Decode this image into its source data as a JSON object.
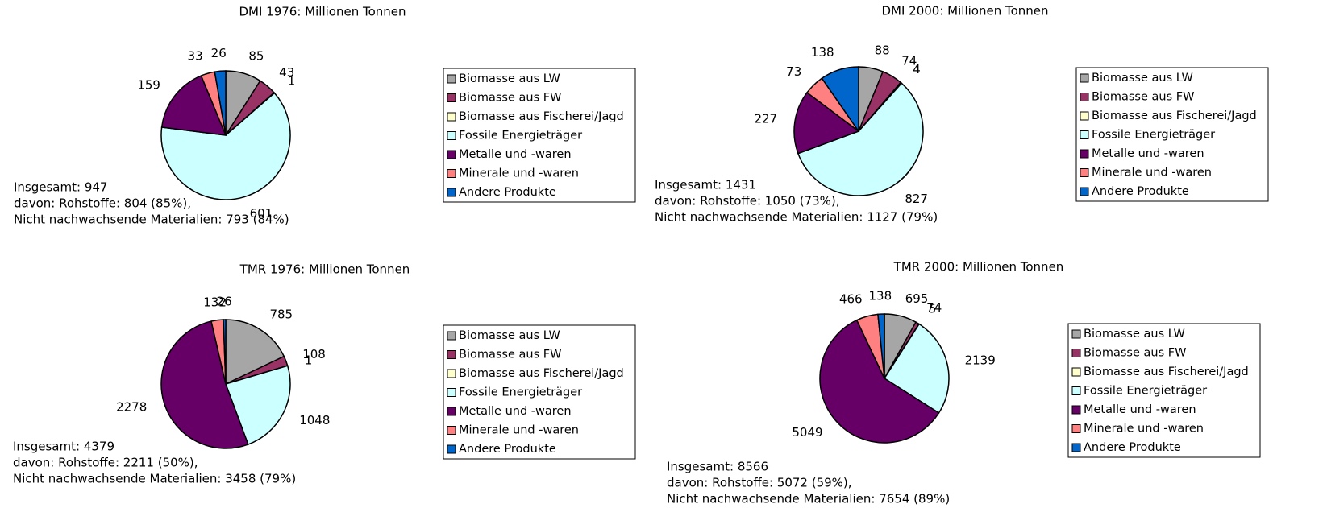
{
  "chart_data": [
    {
      "type": "pie",
      "title": "DMI 1976: Millionen Tonnen",
      "categories": [
        "Biomasse aus LW",
        "Biomasse aus FW",
        "Biomasse aus Fischerei/Jagd",
        "Fossile Energieträger",
        "Metalle und -waren",
        "Minerale und -waren",
        "Andere Produkte"
      ],
      "values": [
        85,
        43,
        1,
        601,
        159,
        33,
        26
      ],
      "colors": [
        "#a6a6a6",
        "#993366",
        "#ffffcc",
        "#ccffff",
        "#660066",
        "#ff8080",
        "#0066cc"
      ],
      "annotations": [
        "Insgesamt: 947",
        "davon: Rohstoffe: 804 (85%),",
        "Nicht nachwachsende Materialien: 793 (84%)"
      ]
    },
    {
      "type": "pie",
      "title": "DMI 2000: Millionen Tonnen",
      "categories": [
        "Biomasse aus LW",
        "Biomasse aus FW",
        "Biomasse aus Fischerei/Jagd",
        "Fossile Energieträger",
        "Metalle und -waren",
        "Minerale und -waren",
        "Andere Produkte"
      ],
      "values": [
        88,
        74,
        4,
        827,
        227,
        73,
        138
      ],
      "colors": [
        "#a6a6a6",
        "#993366",
        "#ffffcc",
        "#ccffff",
        "#660066",
        "#ff8080",
        "#0066cc"
      ],
      "annotations": [
        "Insgesamt: 1431",
        "davon: Rohstoffe: 1050 (73%),",
        "Nicht nachwachsende Materialien: 1127 (79%)"
      ]
    },
    {
      "type": "pie",
      "title": "TMR 1976: Millionen Tonnen",
      "categories": [
        "Biomasse aus LW",
        "Biomasse aus FW",
        "Biomasse aus Fischerei/Jagd",
        "Fossile Energieträger",
        "Metalle und -waren",
        "Minerale und -waren",
        "Andere Produkte"
      ],
      "values": [
        785,
        108,
        1,
        1048,
        2278,
        132,
        26
      ],
      "colors": [
        "#a6a6a6",
        "#993366",
        "#ffffcc",
        "#ccffff",
        "#660066",
        "#ff8080",
        "#0066cc"
      ],
      "annotations": [
        "Insgesamt: 4379",
        "davon: Rohstoffe: 2211 (50%),",
        "Nicht nachwachsende Materialien: 3458 (79%)"
      ]
    },
    {
      "type": "pie",
      "title": "TMR 2000: Millionen Tonnen",
      "categories": [
        "Biomasse aus LW",
        "Biomasse aus FW",
        "Biomasse aus Fischerei/Jagd",
        "Fossile Energieträger",
        "Metalle und -waren",
        "Minerale und -waren",
        "Andere Produkte"
      ],
      "values": [
        695,
        74,
        5,
        2139,
        5049,
        466,
        138
      ],
      "colors": [
        "#a6a6a6",
        "#993366",
        "#ffffcc",
        "#ccffff",
        "#660066",
        "#ff8080",
        "#0066cc"
      ],
      "annotations": [
        "Insgesamt: 8566",
        "davon: Rohstoffe: 5072 (59%),",
        "Nicht nachwachsende Materialien: 7654 (89%)"
      ]
    }
  ]
}
